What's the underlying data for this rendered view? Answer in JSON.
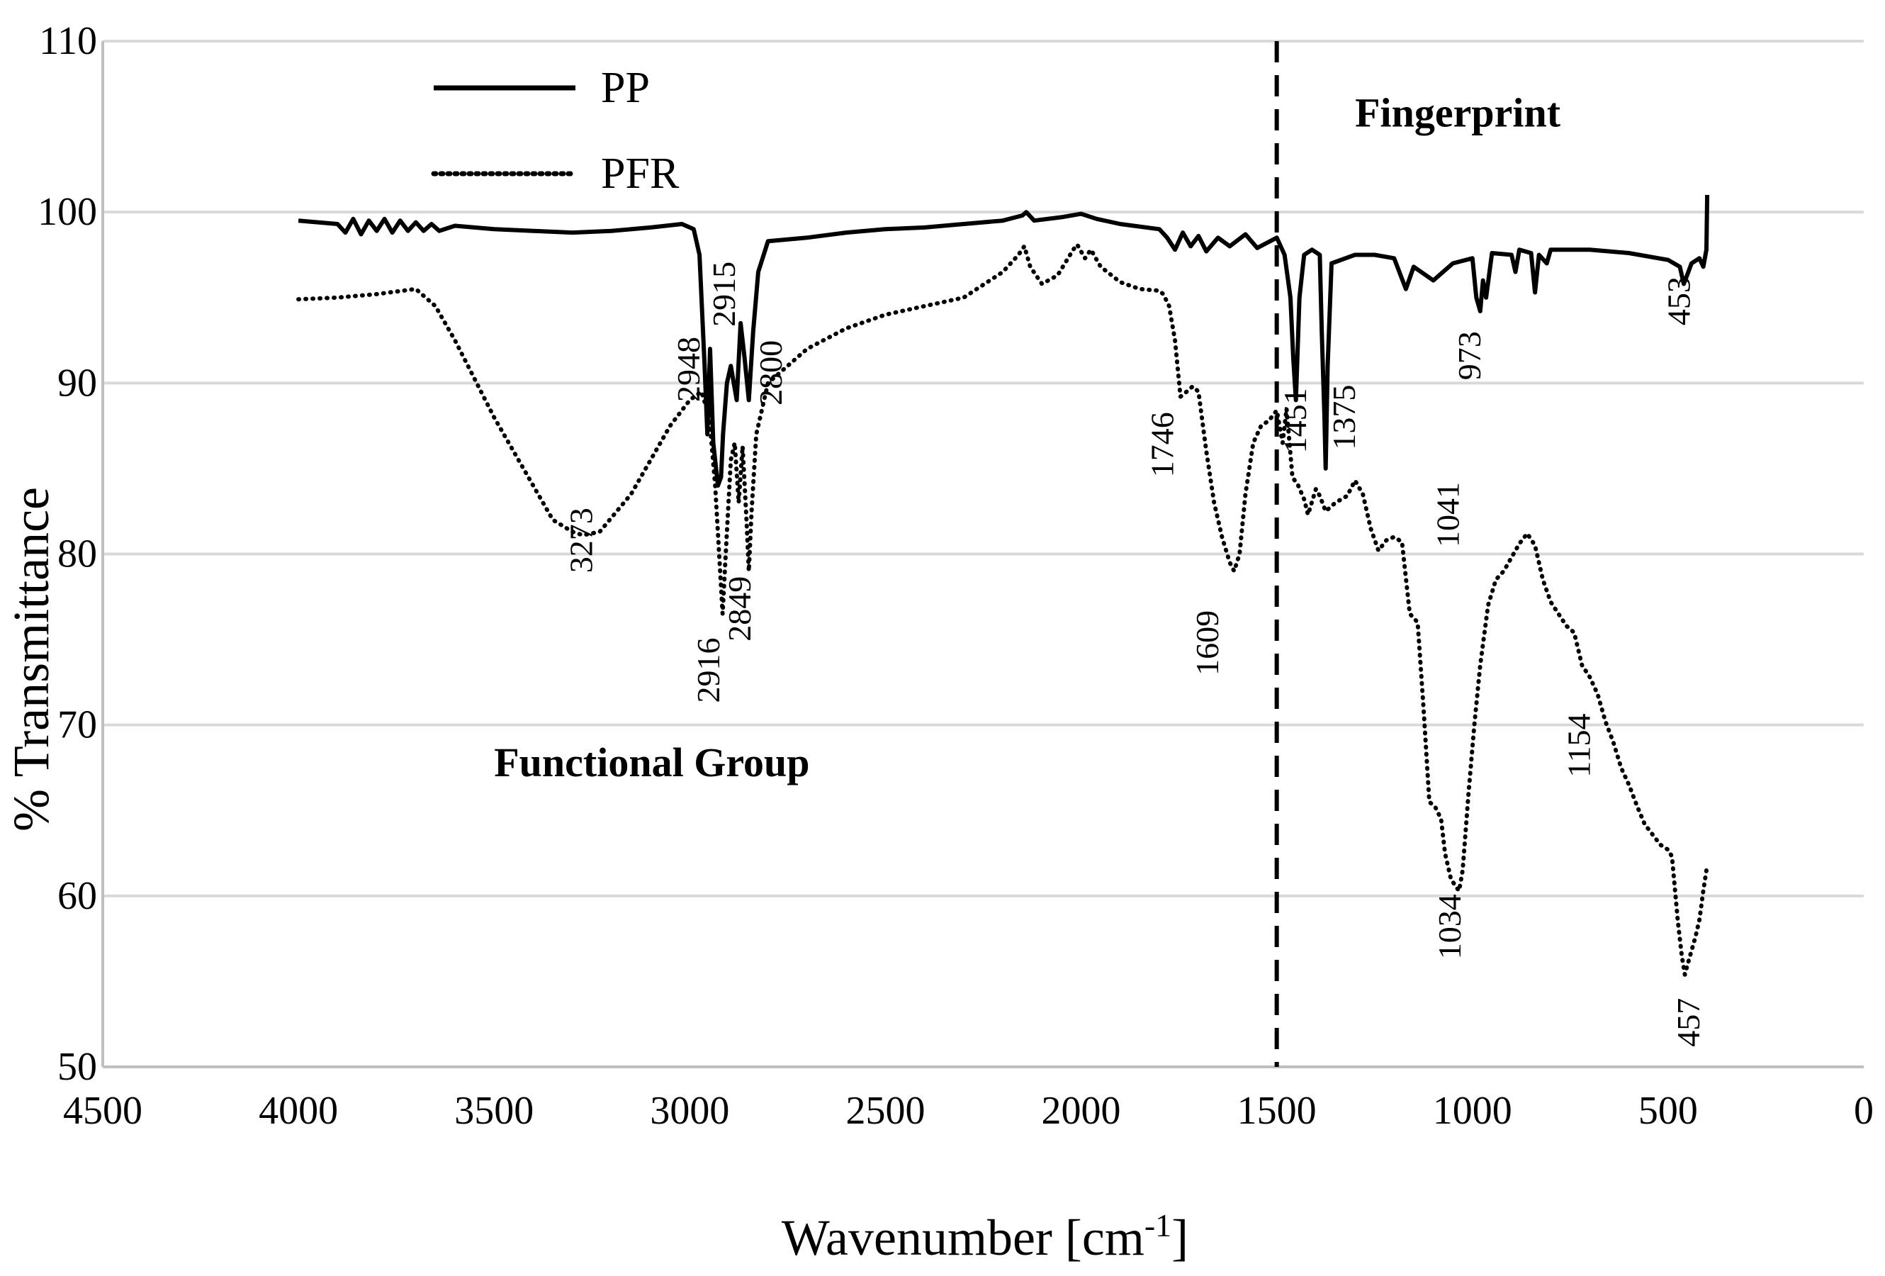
{
  "chart_data": {
    "type": "line",
    "title": "",
    "xlabel": "Wavenumber [cm",
    "xlabel_sup": "-1",
    "xlabel_end": "]",
    "ylabel": "% Transmittance",
    "xlim": [
      4500,
      0
    ],
    "ylim": [
      50,
      110
    ],
    "x_reversed": true,
    "x_ticks": [
      4500,
      4000,
      3500,
      3000,
      2500,
      2000,
      1500,
      1000,
      500,
      0
    ],
    "y_ticks": [
      50,
      60,
      70,
      80,
      90,
      100,
      110
    ],
    "grid": "horizontal",
    "legend": {
      "position": "top-left",
      "entries": [
        "PP",
        "PFR"
      ]
    },
    "divider_x": 1500,
    "regions": [
      {
        "label": "Functional Group",
        "x": 3500,
        "y": 67
      },
      {
        "label": "Fingerprint",
        "x": 1300,
        "y": 105
      }
    ],
    "series": [
      {
        "name": "PP",
        "style": "solid",
        "color": "#000000",
        "points": [
          [
            4000,
            99.5
          ],
          [
            3950,
            99.4
          ],
          [
            3900,
            99.3
          ],
          [
            3880,
            98.8
          ],
          [
            3860,
            99.6
          ],
          [
            3840,
            98.7
          ],
          [
            3820,
            99.5
          ],
          [
            3800,
            98.9
          ],
          [
            3780,
            99.6
          ],
          [
            3760,
            98.8
          ],
          [
            3740,
            99.5
          ],
          [
            3720,
            98.9
          ],
          [
            3700,
            99.4
          ],
          [
            3680,
            98.9
          ],
          [
            3660,
            99.3
          ],
          [
            3640,
            98.9
          ],
          [
            3600,
            99.2
          ],
          [
            3500,
            99.0
          ],
          [
            3400,
            98.9
          ],
          [
            3300,
            98.8
          ],
          [
            3200,
            98.9
          ],
          [
            3100,
            99.1
          ],
          [
            3020,
            99.3
          ],
          [
            2990,
            99.0
          ],
          [
            2975,
            97.5
          ],
          [
            2962,
            91.0
          ],
          [
            2955,
            87.0
          ],
          [
            2948,
            92.0
          ],
          [
            2940,
            86.5
          ],
          [
            2928,
            84.0
          ],
          [
            2920,
            84.5
          ],
          [
            2915,
            87.0
          ],
          [
            2905,
            90.0
          ],
          [
            2895,
            91.0
          ],
          [
            2880,
            89.0
          ],
          [
            2870,
            93.5
          ],
          [
            2860,
            91.5
          ],
          [
            2849,
            89.0
          ],
          [
            2838,
            93.0
          ],
          [
            2825,
            96.5
          ],
          [
            2800,
            98.3
          ],
          [
            2700,
            98.5
          ],
          [
            2600,
            98.8
          ],
          [
            2500,
            99.0
          ],
          [
            2400,
            99.1
          ],
          [
            2300,
            99.3
          ],
          [
            2200,
            99.5
          ],
          [
            2150,
            99.8
          ],
          [
            2140,
            100.0
          ],
          [
            2120,
            99.5
          ],
          [
            2050,
            99.7
          ],
          [
            2000,
            99.9
          ],
          [
            1960,
            99.6
          ],
          [
            1900,
            99.3
          ],
          [
            1800,
            99.0
          ],
          [
            1780,
            98.5
          ],
          [
            1760,
            97.8
          ],
          [
            1740,
            98.8
          ],
          [
            1720,
            98.0
          ],
          [
            1700,
            98.6
          ],
          [
            1680,
            97.7
          ],
          [
            1650,
            98.5
          ],
          [
            1620,
            98.0
          ],
          [
            1580,
            98.7
          ],
          [
            1550,
            97.9
          ],
          [
            1500,
            98.5
          ],
          [
            1480,
            97.5
          ],
          [
            1465,
            95.0
          ],
          [
            1458,
            91.5
          ],
          [
            1451,
            89.0
          ],
          [
            1442,
            95.0
          ],
          [
            1430,
            97.5
          ],
          [
            1410,
            97.8
          ],
          [
            1390,
            97.5
          ],
          [
            1385,
            93.0
          ],
          [
            1378,
            88.0
          ],
          [
            1375,
            85.0
          ],
          [
            1370,
            91.0
          ],
          [
            1360,
            97.0
          ],
          [
            1300,
            97.5
          ],
          [
            1250,
            97.5
          ],
          [
            1200,
            97.3
          ],
          [
            1170,
            95.5
          ],
          [
            1150,
            96.8
          ],
          [
            1100,
            96.0
          ],
          [
            1050,
            97.0
          ],
          [
            1000,
            97.3
          ],
          [
            990,
            95.0
          ],
          [
            980,
            94.2
          ],
          [
            973,
            96.0
          ],
          [
            965,
            95.0
          ],
          [
            950,
            97.6
          ],
          [
            900,
            97.5
          ],
          [
            890,
            96.5
          ],
          [
            880,
            97.8
          ],
          [
            850,
            97.6
          ],
          [
            840,
            95.3
          ],
          [
            830,
            97.5
          ],
          [
            810,
            97.0
          ],
          [
            800,
            97.8
          ],
          [
            700,
            97.8
          ],
          [
            600,
            97.6
          ],
          [
            500,
            97.2
          ],
          [
            470,
            96.8
          ],
          [
            460,
            95.8
          ],
          [
            453,
            96.2
          ],
          [
            440,
            97.0
          ],
          [
            420,
            97.3
          ],
          [
            410,
            96.8
          ],
          [
            402,
            97.8
          ],
          [
            400,
            101.0
          ]
        ]
      },
      {
        "name": "PFR",
        "style": "dotted",
        "color": "#000000",
        "points": [
          [
            4000,
            94.9
          ],
          [
            3900,
            95.0
          ],
          [
            3800,
            95.2
          ],
          [
            3700,
            95.5
          ],
          [
            3650,
            94.5
          ],
          [
            3600,
            92.5
          ],
          [
            3500,
            88.0
          ],
          [
            3400,
            84.0
          ],
          [
            3350,
            82.0
          ],
          [
            3300,
            81.3
          ],
          [
            3273,
            81.1
          ],
          [
            3230,
            81.3
          ],
          [
            3150,
            83.5
          ],
          [
            3050,
            87.5
          ],
          [
            3000,
            89.0
          ],
          [
            2970,
            89.5
          ],
          [
            2950,
            88.0
          ],
          [
            2935,
            84.0
          ],
          [
            2925,
            80.0
          ],
          [
            2916,
            76.5
          ],
          [
            2908,
            80.0
          ],
          [
            2895,
            85.5
          ],
          [
            2885,
            86.5
          ],
          [
            2875,
            83.0
          ],
          [
            2865,
            86.3
          ],
          [
            2855,
            82.0
          ],
          [
            2849,
            79.0
          ],
          [
            2842,
            82.5
          ],
          [
            2830,
            87.0
          ],
          [
            2800,
            90.0
          ],
          [
            2700,
            92.0
          ],
          [
            2600,
            93.2
          ],
          [
            2500,
            94.0
          ],
          [
            2400,
            94.5
          ],
          [
            2300,
            95.0
          ],
          [
            2200,
            96.5
          ],
          [
            2160,
            97.5
          ],
          [
            2145,
            98.0
          ],
          [
            2130,
            96.8
          ],
          [
            2100,
            95.8
          ],
          [
            2060,
            96.3
          ],
          [
            2020,
            97.8
          ],
          [
            2010,
            98.1
          ],
          [
            1990,
            97.3
          ],
          [
            1975,
            97.8
          ],
          [
            1950,
            96.8
          ],
          [
            1900,
            95.9
          ],
          [
            1850,
            95.5
          ],
          [
            1800,
            95.4
          ],
          [
            1790,
            95.2
          ],
          [
            1775,
            94.5
          ],
          [
            1760,
            92.5
          ],
          [
            1746,
            89.2
          ],
          [
            1730,
            89.5
          ],
          [
            1715,
            89.8
          ],
          [
            1700,
            89.5
          ],
          [
            1680,
            86.0
          ],
          [
            1660,
            83.0
          ],
          [
            1640,
            81.0
          ],
          [
            1620,
            79.5
          ],
          [
            1609,
            79.0
          ],
          [
            1595,
            80.0
          ],
          [
            1580,
            83.5
          ],
          [
            1560,
            86.5
          ],
          [
            1540,
            87.5
          ],
          [
            1520,
            87.8
          ],
          [
            1500,
            88.4
          ],
          [
            1485,
            86.5
          ],
          [
            1475,
            88.5
          ],
          [
            1460,
            84.5
          ],
          [
            1445,
            84.0
          ],
          [
            1430,
            83.2
          ],
          [
            1420,
            82.3
          ],
          [
            1400,
            83.8
          ],
          [
            1390,
            83.4
          ],
          [
            1375,
            82.5
          ],
          [
            1350,
            83.0
          ],
          [
            1320,
            83.4
          ],
          [
            1300,
            84.3
          ],
          [
            1280,
            83.5
          ],
          [
            1260,
            81.5
          ],
          [
            1240,
            80.2
          ],
          [
            1220,
            80.8
          ],
          [
            1200,
            81.0
          ],
          [
            1180,
            80.7
          ],
          [
            1160,
            76.5
          ],
          [
            1140,
            76.0
          ],
          [
            1125,
            71.0
          ],
          [
            1110,
            65.5
          ],
          [
            1095,
            65.2
          ],
          [
            1080,
            64.5
          ],
          [
            1070,
            62.5
          ],
          [
            1055,
            61.0
          ],
          [
            1041,
            60.5
          ],
          [
            1034,
            60.3
          ],
          [
            1025,
            61.5
          ],
          [
            1010,
            66.0
          ],
          [
            995,
            70.0
          ],
          [
            980,
            73.5
          ],
          [
            960,
            77.0
          ],
          [
            940,
            78.5
          ],
          [
            920,
            79.0
          ],
          [
            900,
            79.8
          ],
          [
            880,
            80.6
          ],
          [
            860,
            81.2
          ],
          [
            840,
            80.5
          ],
          [
            820,
            78.5
          ],
          [
            800,
            77.2
          ],
          [
            780,
            76.5
          ],
          [
            760,
            75.8
          ],
          [
            740,
            75.4
          ],
          [
            720,
            73.5
          ],
          [
            700,
            72.8
          ],
          [
            680,
            71.8
          ],
          [
            660,
            70.2
          ],
          [
            640,
            69.0
          ],
          [
            620,
            67.5
          ],
          [
            600,
            66.5
          ],
          [
            580,
            65.3
          ],
          [
            560,
            64.2
          ],
          [
            540,
            63.6
          ],
          [
            520,
            63.0
          ],
          [
            500,
            62.7
          ],
          [
            490,
            62.3
          ],
          [
            475,
            58.5
          ],
          [
            465,
            56.5
          ],
          [
            457,
            55.4
          ],
          [
            450,
            56.0
          ],
          [
            440,
            56.8
          ],
          [
            430,
            57.6
          ],
          [
            420,
            58.6
          ],
          [
            410,
            60.3
          ],
          [
            400,
            61.8
          ]
        ]
      }
    ],
    "peak_labels": [
      {
        "text": "3273",
        "x": 3250,
        "y": 80.8,
        "color": "#000000"
      },
      {
        "text": "2948",
        "x": 2975,
        "y": 90.8,
        "color": "#000000"
      },
      {
        "text": "2915",
        "x": 2885,
        "y": 95.2,
        "color": "#000000"
      },
      {
        "text": "2800",
        "x": 2765,
        "y": 90.6,
        "color": "#000000"
      },
      {
        "text": "2916",
        "x": 2925,
        "y": 73.2,
        "color": "#000000"
      },
      {
        "text": "2849",
        "x": 2845,
        "y": 76.8,
        "color": "#000000"
      },
      {
        "text": "1746",
        "x": 1765,
        "y": 86.4,
        "color": "#000000"
      },
      {
        "text": "1609",
        "x": 1650,
        "y": 74.8,
        "color": "#000000"
      },
      {
        "text": "1451",
        "x": 1425,
        "y": 87.8,
        "color": "#000000"
      },
      {
        "text": "1375",
        "x": 1300,
        "y": 88.0,
        "color": "#000000"
      },
      {
        "text": "1041",
        "x": 1035,
        "y": 82.3,
        "color": "#000000"
      },
      {
        "text": "1034",
        "x": 1030,
        "y": 58.2,
        "color": "#000000"
      },
      {
        "text": "973",
        "x": 980,
        "y": 91.6,
        "color": "#000000"
      },
      {
        "text": "1154",
        "x": 700,
        "y": 68.8,
        "color": "#000000"
      },
      {
        "text": "453",
        "x": 445,
        "y": 94.8,
        "color": "#000000"
      },
      {
        "text": "457",
        "x": 420,
        "y": 52.6,
        "color": "#000000"
      }
    ]
  }
}
